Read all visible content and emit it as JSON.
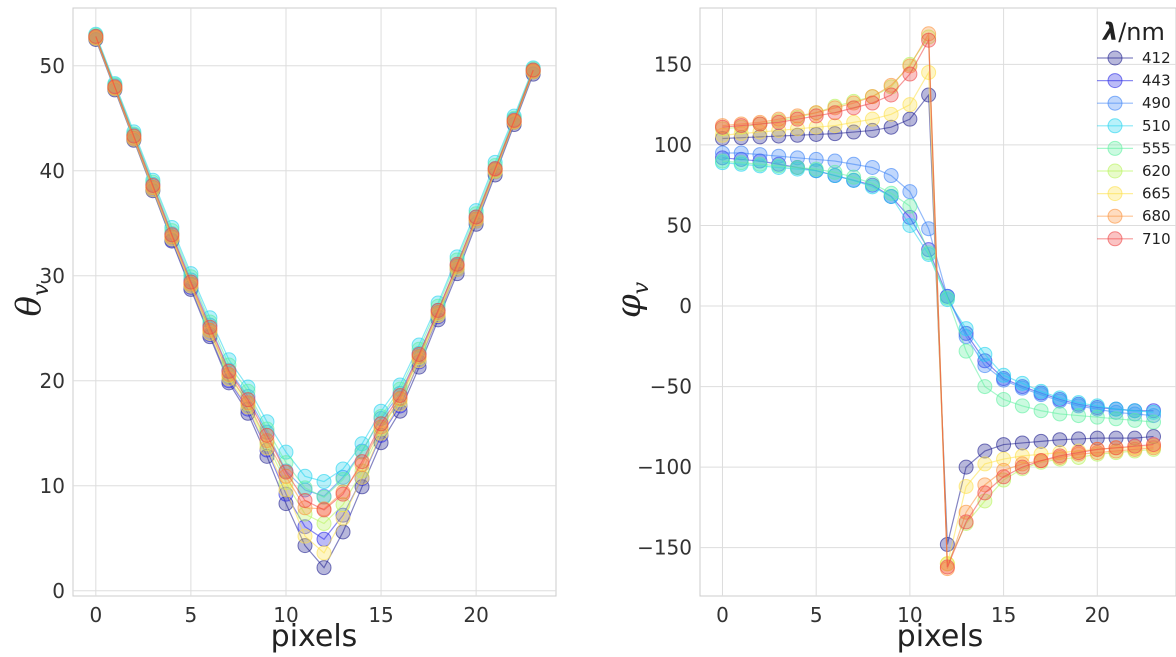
{
  "legend": {
    "title_symbol": "λ",
    "title_unit": "/nm"
  },
  "colors": {
    "412": "#1f1f8f",
    "443": "#2a2ae6",
    "490": "#3b82f6",
    "510": "#22d3ee",
    "555": "#5ef0a0",
    "620": "#b7f45a",
    "665": "#fde047",
    "680": "#fb923c",
    "710": "#ef4444"
  },
  "chart_data": [
    {
      "type": "line",
      "xlabel": "pixels",
      "ylabel": "θ",
      "ylabel_sub": "v",
      "xlim": [
        -1.2,
        24.2
      ],
      "ylim": [
        -0.5,
        55.5
      ],
      "xticks": [
        "0",
        "5",
        "10",
        "15",
        "20"
      ],
      "xtick_values": [
        0,
        5,
        10,
        15,
        20
      ],
      "yticks": [
        "0",
        "10",
        "20",
        "30",
        "40",
        "50"
      ],
      "ytick_values": [
        0,
        10,
        20,
        30,
        40,
        50
      ],
      "x": [
        0,
        1,
        2,
        3,
        4,
        5,
        6,
        7,
        8,
        9,
        10,
        11,
        12,
        13,
        14,
        15,
        16,
        17,
        18,
        19,
        20,
        21,
        22,
        23
      ],
      "series": [
        {
          "name": "412",
          "values": [
            52.5,
            47.7,
            42.9,
            38.1,
            33.3,
            28.7,
            24.2,
            19.8,
            16.9,
            12.8,
            8.3,
            4.3,
            2.2,
            5.6,
            9.9,
            14.1,
            17.1,
            21.3,
            25.8,
            30.2,
            34.9,
            39.6,
            44.4,
            49.2
          ]
        },
        {
          "name": "443",
          "values": [
            52.6,
            47.8,
            43.0,
            38.2,
            33.4,
            28.9,
            24.4,
            20.0,
            17.3,
            13.4,
            9.2,
            6.1,
            4.9,
            7.2,
            10.7,
            14.8,
            17.6,
            21.8,
            26.1,
            30.6,
            35.2,
            39.9,
            44.6,
            49.4
          ]
        },
        {
          "name": "490",
          "values": [
            52.8,
            48.1,
            43.4,
            38.7,
            34.0,
            29.6,
            25.3,
            21.0,
            18.5,
            15.1,
            11.4,
            9.6,
            9.0,
            10.8,
            13.3,
            16.4,
            18.8,
            22.6,
            26.7,
            31.0,
            35.6,
            40.2,
            44.9,
            49.6
          ]
        },
        {
          "name": "510",
          "values": [
            53.0,
            48.3,
            43.7,
            39.1,
            34.6,
            30.2,
            26.0,
            22.0,
            19.4,
            16.1,
            13.2,
            10.9,
            10.4,
            11.6,
            14.0,
            17.1,
            19.6,
            23.4,
            27.4,
            31.8,
            36.2,
            40.8,
            45.2,
            49.8
          ]
        },
        {
          "name": "555",
          "values": [
            52.9,
            48.2,
            43.5,
            38.9,
            34.3,
            29.9,
            25.6,
            21.5,
            19.0,
            15.4,
            12.2,
            9.8,
            8.9,
            10.6,
            13.2,
            16.6,
            19.2,
            23.0,
            27.1,
            31.5,
            35.9,
            40.5,
            45.0,
            49.7
          ]
        },
        {
          "name": "620",
          "values": [
            52.7,
            47.9,
            43.2,
            38.4,
            33.7,
            29.2,
            24.8,
            20.5,
            17.8,
            14.0,
            10.3,
            7.3,
            6.4,
            8.2,
            11.4,
            15.4,
            18.2,
            22.2,
            26.4,
            30.8,
            35.4,
            40.0,
            44.7,
            49.5
          ]
        },
        {
          "name": "665",
          "values": [
            52.6,
            47.8,
            43.0,
            38.2,
            33.5,
            29.0,
            24.5,
            20.2,
            17.5,
            13.6,
            9.6,
            5.2,
            3.6,
            6.9,
            10.8,
            15.0,
            17.8,
            21.9,
            26.2,
            30.6,
            35.2,
            39.9,
            44.6,
            49.4
          ]
        },
        {
          "name": "680",
          "values": [
            52.7,
            47.9,
            43.1,
            38.4,
            33.7,
            29.2,
            24.8,
            20.6,
            17.9,
            14.3,
            10.9,
            7.9,
            7.8,
            9.4,
            12.0,
            15.6,
            18.3,
            22.3,
            26.5,
            30.9,
            35.4,
            40.1,
            44.7,
            49.5
          ]
        },
        {
          "name": "710",
          "values": [
            52.8,
            48.0,
            43.3,
            38.6,
            33.9,
            29.4,
            25.1,
            20.9,
            18.2,
            14.8,
            11.3,
            8.6,
            7.7,
            9.2,
            12.3,
            15.9,
            18.6,
            22.5,
            26.7,
            31.1,
            35.6,
            40.2,
            44.8,
            49.6
          ]
        }
      ]
    },
    {
      "type": "line",
      "xlabel": "pixels",
      "ylabel": "φ",
      "ylabel_sub": "v",
      "xlim": [
        -1.2,
        24.2
      ],
      "ylim": [
        -180,
        185
      ],
      "xticks": [
        "0",
        "5",
        "10",
        "15",
        "20"
      ],
      "xtick_values": [
        0,
        5,
        10,
        15,
        20
      ],
      "yticks": [
        "150",
        "100",
        "50",
        "0",
        "−50",
        "−100",
        "−150"
      ],
      "ytick_values": [
        150,
        100,
        50,
        0,
        -50,
        -100,
        -150
      ],
      "x": [
        0,
        1,
        2,
        3,
        4,
        5,
        6,
        7,
        8,
        9,
        10,
        11,
        12,
        13,
        14,
        15,
        16,
        17,
        18,
        19,
        20,
        21,
        22,
        23
      ],
      "series": [
        {
          "name": "412",
          "values": [
            104,
            104.5,
            105,
            105.5,
            106,
            106.5,
            107,
            108,
            109,
            111,
            116,
            131,
            -148,
            -100,
            -90,
            -86,
            -85,
            -84,
            -83,
            -82.5,
            -82,
            -82,
            -82,
            -81
          ]
        },
        {
          "name": "443",
          "values": [
            92,
            91,
            90,
            88,
            86,
            84,
            81,
            78,
            75,
            68,
            55,
            35,
            6,
            -17,
            -34,
            -45,
            -50,
            -54,
            -58,
            -61,
            -63,
            -64,
            -65,
            -65
          ]
        },
        {
          "name": "490",
          "values": [
            95,
            95,
            94,
            93,
            92,
            91,
            90,
            88,
            86,
            81,
            71,
            48,
            6,
            -19,
            -37,
            -46,
            -51,
            -55,
            -59,
            -62,
            -64,
            -66,
            -67,
            -68
          ]
        },
        {
          "name": "510",
          "values": [
            89,
            88,
            87,
            86,
            85,
            84,
            81,
            78,
            74,
            68,
            50,
            32,
            4,
            -14,
            -30,
            -43,
            -48,
            -53,
            -57,
            -60,
            -62,
            -64,
            -65,
            -66
          ]
        },
        {
          "name": "555",
          "values": [
            90,
            89,
            88,
            87,
            86,
            85,
            83,
            80,
            76,
            70,
            62,
            33,
            5,
            -28,
            -50,
            -58,
            -62,
            -65,
            -67,
            -68,
            -69,
            -70,
            -71,
            -72
          ]
        },
        {
          "name": "620",
          "values": [
            110,
            111,
            113,
            115,
            117,
            120,
            124,
            127,
            130,
            136,
            150,
            167,
            -160,
            -135,
            -121,
            -108,
            -101,
            -97,
            -95,
            -94,
            -92,
            -91,
            -90,
            -89
          ]
        },
        {
          "name": "665",
          "values": [
            106,
            107,
            108,
            109,
            110,
            111,
            112,
            114,
            116,
            119,
            125,
            145,
            -160,
            -112,
            -98,
            -95,
            -93,
            -92,
            -91,
            -90,
            -89,
            -88,
            -88,
            -87
          ]
        },
        {
          "name": "680",
          "values": [
            112,
            113,
            114,
            116,
            118,
            120,
            123,
            126,
            130,
            137,
            149,
            169,
            -163,
            -128,
            -111,
            -102,
            -98,
            -96,
            -94,
            -92,
            -91,
            -90,
            -89,
            -88
          ]
        },
        {
          "name": "710",
          "values": [
            111,
            112,
            113,
            114,
            116,
            118,
            120,
            123,
            126,
            131,
            144,
            165,
            -162,
            -134,
            -116,
            -106,
            -100,
            -96,
            -93,
            -91,
            -89,
            -88,
            -87,
            -86
          ]
        }
      ]
    }
  ]
}
